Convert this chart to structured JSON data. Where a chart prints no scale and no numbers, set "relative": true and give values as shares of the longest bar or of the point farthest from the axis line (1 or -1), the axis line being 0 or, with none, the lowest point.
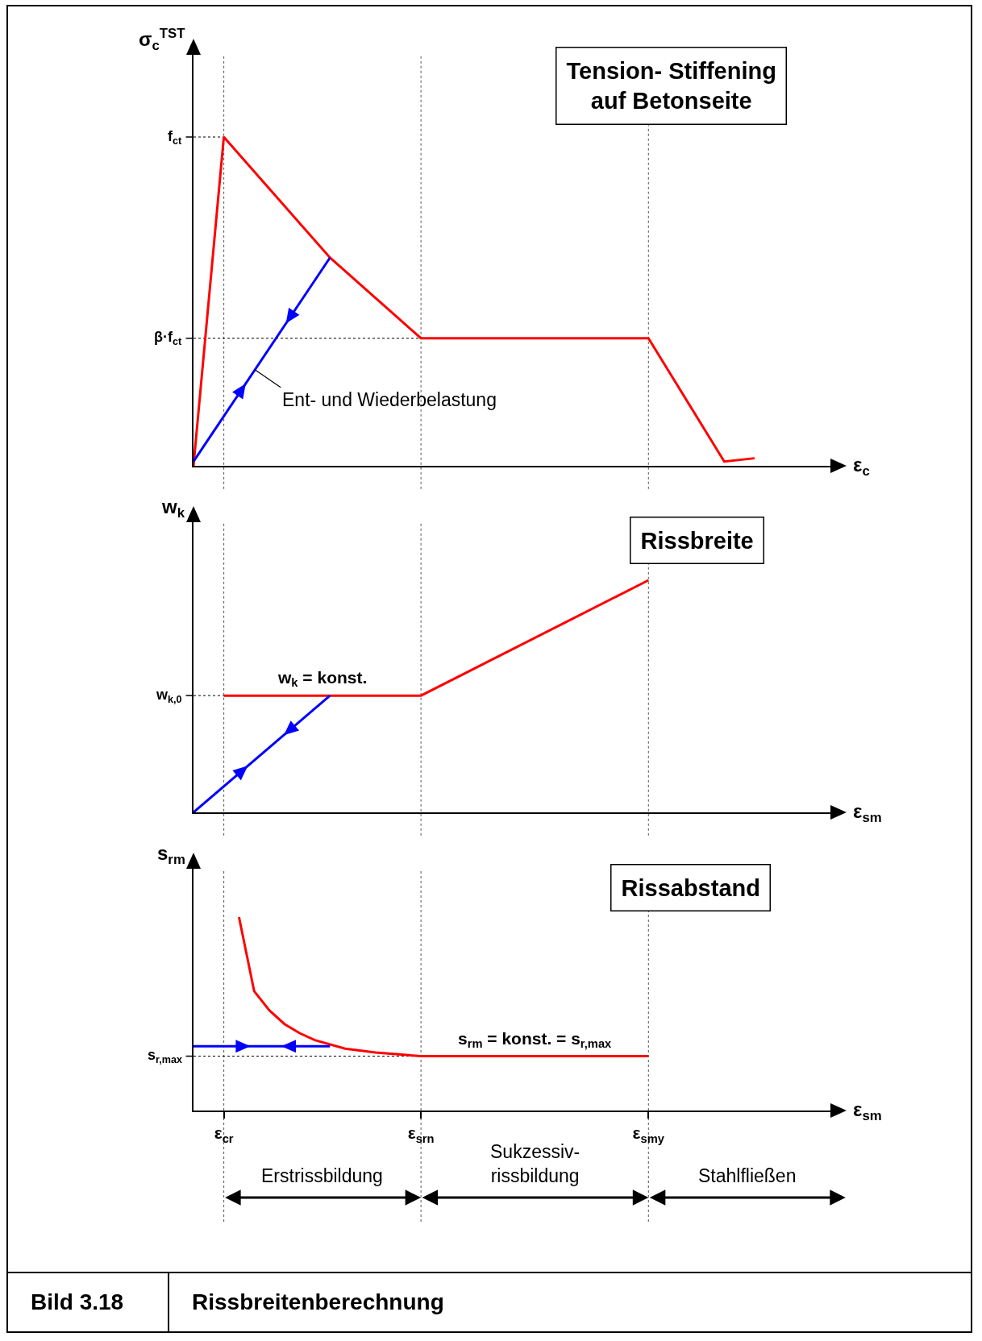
{
  "chart_data": [
    {
      "type": "line",
      "relative": true,
      "title": "Tension- Stiffening\nauf Betonseite",
      "ylabel": "σ$_{c}$$^{TST}$",
      "xlabel": "ε$_{c}$",
      "tick_labels": false,
      "grid": false,
      "marker": "none",
      "line_style": "solid",
      "categories": [
        null,
        null,
        "ε$_{cr}$",
        null,
        null,
        null,
        null,
        null,
        null,
        null,
        null,
        null,
        null,
        null,
        null,
        "ε$_{srn}$",
        null,
        null,
        null,
        null,
        null,
        null,
        null,
        null,
        null,
        null,
        null,
        null,
        null,
        null,
        "ε$_{smy}$",
        null,
        null,
        null,
        null,
        null,
        null,
        null,
        null,
        null,
        null,
        null
      ],
      "series": [
        {
          "color": "#ff0000",
          "values": [
            0,
            null,
            1,
            null,
            null,
            null,
            null,
            null,
            null,
            0.633,
            null,
            null,
            null,
            null,
            null,
            0.388,
            null,
            null,
            null,
            null,
            null,
            null,
            null,
            null,
            null,
            null,
            null,
            null,
            null,
            null,
            0.388,
            null,
            null,
            null,
            null,
            0.013,
            null,
            0.023,
            null,
            null,
            null,
            null
          ]
        },
        {
          "color": "#0000ff",
          "values": [
            0.013,
            null,
            null,
            null,
            null,
            null,
            null,
            null,
            null,
            0.633,
            null,
            null,
            null,
            null,
            null,
            null,
            null,
            null,
            null,
            null,
            null,
            null,
            null,
            null,
            null,
            null,
            null,
            null,
            null,
            null,
            null,
            null,
            null,
            null,
            null,
            null,
            null,
            null,
            null,
            null,
            null,
            null
          ]
        }
      ],
      "ref_lines": [
        {
          "axis": "x",
          "value": "ε$_{cr}$",
          "line_style": "dotted"
        },
        {
          "axis": "x",
          "value": "ε$_{srn}$",
          "line_style": "dotted"
        },
        {
          "axis": "x",
          "value": "ε$_{smy}$",
          "line_style": "dotted"
        },
        {
          "axis": "y",
          "value": 1,
          "label": "f$_{ct}$",
          "line_style": "dotted"
        },
        {
          "axis": "y",
          "value": 0.388,
          "label": "β·f$_{ct}$",
          "line_style": "dotted"
        }
      ],
      "annotations": [
        "Ent- und Wiederbelastung"
      ]
    },
    {
      "type": "line",
      "relative": true,
      "title": "Rissbreite",
      "ylabel": "w$_{k}$",
      "xlabel": "ε$_{sm}$",
      "tick_labels": false,
      "grid": false,
      "marker": "none",
      "line_style": "solid",
      "categories": [
        null,
        null,
        "ε$_{cr}$",
        null,
        null,
        null,
        null,
        null,
        null,
        null,
        null,
        null,
        null,
        null,
        null,
        "ε$_{srn}$",
        null,
        null,
        null,
        null,
        null,
        null,
        null,
        null,
        null,
        null,
        null,
        null,
        null,
        null,
        "ε$_{smy}$",
        null,
        null,
        null,
        null,
        null,
        null,
        null,
        null,
        null,
        null,
        null
      ],
      "series": [
        {
          "color": "#ff0000",
          "values": [
            null,
            null,
            0.503,
            null,
            null,
            null,
            null,
            null,
            null,
            null,
            null,
            null,
            null,
            null,
            null,
            0.503,
            null,
            null,
            null,
            null,
            null,
            null,
            null,
            null,
            null,
            null,
            null,
            null,
            null,
            null,
            1,
            null,
            null,
            null,
            null,
            null,
            null,
            null,
            null,
            null,
            null,
            null
          ]
        },
        {
          "color": "#0000ff",
          "values": [
            0,
            null,
            null,
            null,
            null,
            null,
            null,
            null,
            null,
            0.503,
            null,
            null,
            null,
            null,
            null,
            null,
            null,
            null,
            null,
            null,
            null,
            null,
            null,
            null,
            null,
            null,
            null,
            null,
            null,
            null,
            null,
            null,
            null,
            null,
            null,
            null,
            null,
            null,
            null,
            null,
            null,
            null
          ]
        }
      ],
      "ref_lines": [
        {
          "axis": "x",
          "value": "ε$_{cr}$",
          "line_style": "dotted"
        },
        {
          "axis": "x",
          "value": "ε$_{srn}$",
          "line_style": "dotted"
        },
        {
          "axis": "x",
          "value": "ε$_{smy}$",
          "line_style": "dotted"
        },
        {
          "axis": "y",
          "value": 0.503,
          "label": "w$_{k,0}$",
          "line_style": "dotted"
        }
      ],
      "annotations": [
        "w$_{k}$ = konst."
      ]
    },
    {
      "type": "line",
      "relative": true,
      "title": "Rissabstand",
      "ylabel": "s$_{rm}$",
      "xlabel": "ε$_{sm}$",
      "tick_labels": "x",
      "grid": false,
      "marker": "none",
      "line_style": "solid",
      "categories": [
        null,
        null,
        "ε$_{cr}$",
        null,
        null,
        null,
        null,
        null,
        null,
        null,
        null,
        null,
        null,
        null,
        null,
        "ε$_{srn}$",
        null,
        null,
        null,
        null,
        null,
        null,
        null,
        null,
        null,
        null,
        null,
        null,
        null,
        null,
        "ε$_{smy}$",
        null,
        null,
        null,
        null,
        null,
        null,
        null,
        null,
        null,
        null,
        null
      ],
      "series": [
        {
          "color": "#ff0000",
          "values": [
            null,
            null,
            null,
            1,
            0.617,
            0.518,
            0.447,
            0.4,
            0.364,
            null,
            0.32,
            null,
            0.3,
            null,
            null,
            0.281,
            null,
            null,
            null,
            null,
            null,
            null,
            null,
            null,
            null,
            null,
            null,
            null,
            null,
            null,
            0.281,
            null,
            null,
            null,
            null,
            null,
            null,
            null,
            null,
            null,
            null,
            null
          ]
        },
        {
          "color": "#0000ff",
          "values": [
            0.332,
            null,
            null,
            null,
            null,
            null,
            null,
            null,
            null,
            0.332,
            null,
            null,
            null,
            null,
            null,
            null,
            null,
            null,
            null,
            null,
            null,
            null,
            null,
            null,
            null,
            null,
            null,
            null,
            null,
            null,
            null,
            null,
            null,
            null,
            null,
            null,
            null,
            null,
            null,
            null,
            null,
            null
          ]
        }
      ],
      "ref_lines": [
        {
          "axis": "x",
          "value": "ε$_{cr}$",
          "line_style": "dotted"
        },
        {
          "axis": "x",
          "value": "ε$_{srn}$",
          "line_style": "dotted"
        },
        {
          "axis": "x",
          "value": "ε$_{smy}$",
          "line_style": "dotted"
        },
        {
          "axis": "y",
          "value": 0.281,
          "label": "s$_{r,max}$",
          "line_style": "dotted"
        }
      ],
      "annotations": [
        "s$_{rm}$ = konst. = s$_{r,max}$",
        "Erstrissbildung",
        "Sukzessiv-\nrissbildung",
        "Stahlfließen",
        "Bild 3.18",
        "Rissbreitenberechnung"
      ]
    }
  ]
}
